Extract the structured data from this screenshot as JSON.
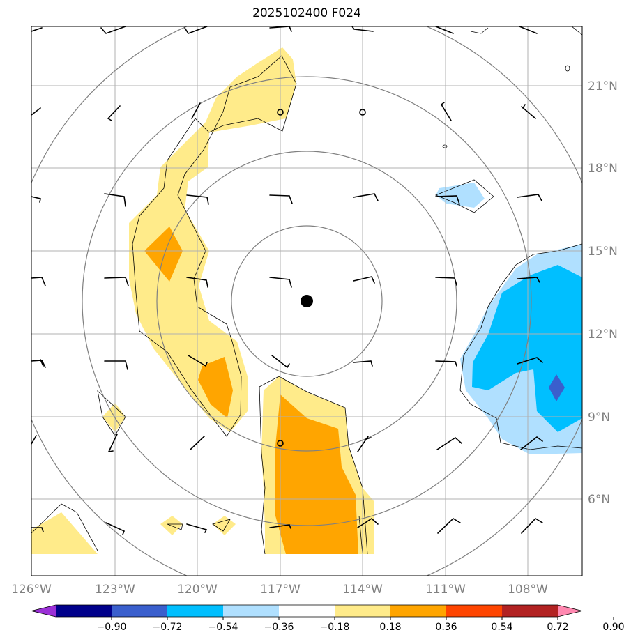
{
  "title": "2025102400 F024",
  "lat_labels": [
    "21°N",
    "18°N",
    "15°N",
    "12°N",
    "9°N",
    "6°N"
  ],
  "lon_labels": [
    "126°W",
    "123°W",
    "120°W",
    "117°W",
    "114°W",
    "111°W",
    "108°W"
  ],
  "colorbar": {
    "tick_labels": [
      "−0.90",
      "−0.72",
      "−0.54",
      "−0.36",
      "−0.18",
      "0.18",
      "0.36",
      "0.54",
      "0.72",
      "0.90"
    ],
    "colors": [
      "#9b30d6",
      "#00008b",
      "#3a5fcd",
      "#00bfff",
      "#b0e0ff",
      "#ffffff",
      "#ffeb8a",
      "#ffa500",
      "#ff4500",
      "#b22222",
      "#ff88b0"
    ]
  },
  "colors": {
    "shade_pos_1": "#ffeb8a",
    "shade_pos_2": "#ffa500",
    "shade_neg_1": "#b0e0ff",
    "shade_neg_2": "#00bfff",
    "shade_neg_3": "#3a5fcd",
    "grid": "#b0b0b0",
    "rings": "#808080"
  },
  "storm_center": {
    "lon": -116,
    "lat": 13.1
  }
}
